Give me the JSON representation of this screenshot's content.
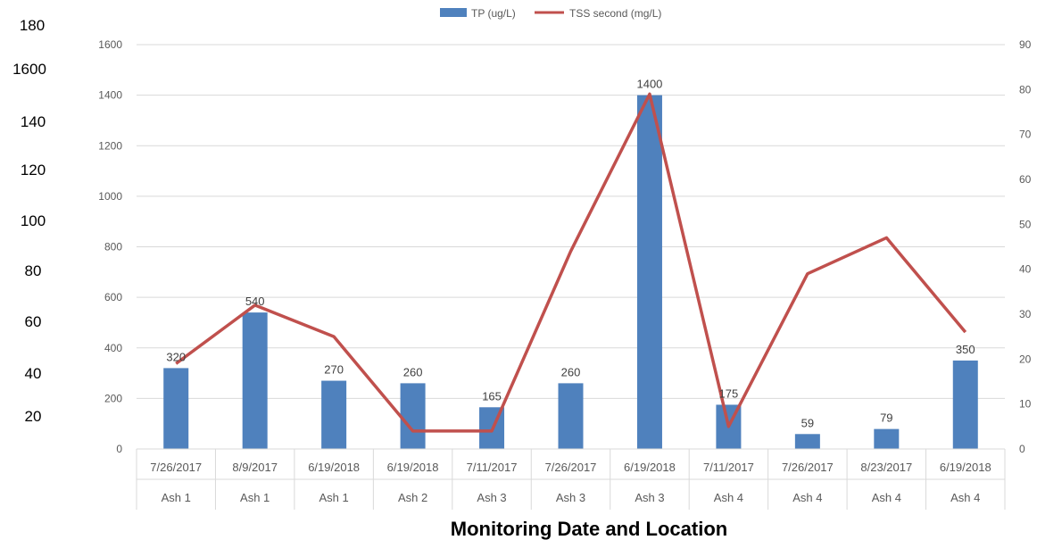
{
  "chart_data": {
    "type": "bar",
    "xlabel": "Monitoring Date and Location",
    "categories": [
      {
        "date": "7/26/2017",
        "location": "Ash 1"
      },
      {
        "date": "8/9/2017",
        "location": "Ash 1"
      },
      {
        "date": "6/19/2018",
        "location": "Ash 1"
      },
      {
        "date": "6/19/2018",
        "location": "Ash 2"
      },
      {
        "date": "7/11/2017",
        "location": "Ash 3"
      },
      {
        "date": "7/26/2017",
        "location": "Ash 3"
      },
      {
        "date": "6/19/2018",
        "location": "Ash 3"
      },
      {
        "date": "7/11/2017",
        "location": "Ash 4"
      },
      {
        "date": "7/26/2017",
        "location": "Ash 4"
      },
      {
        "date": "8/23/2017",
        "location": "Ash 4"
      },
      {
        "date": "6/19/2018",
        "location": "Ash 4"
      }
    ],
    "series": [
      {
        "name": "TP (ug/L)",
        "type": "bar",
        "axis": "left",
        "color": "#4f81bd",
        "values": [
          320,
          540,
          270,
          260,
          165,
          260,
          1400,
          175,
          59,
          79,
          350
        ],
        "data_labels": [
          "320",
          "540",
          "270",
          "260",
          "165",
          "260",
          "1400",
          "175",
          "59",
          "79",
          "350"
        ]
      },
      {
        "name": "TSS second (mg/L)",
        "type": "line",
        "axis": "right",
        "color": "#c0504d",
        "values": [
          19,
          32,
          25,
          4,
          4,
          44,
          79,
          5,
          39,
          47,
          26
        ]
      }
    ],
    "y_left": {
      "range": [
        0,
        1600
      ],
      "ticks": [
        "0",
        "200",
        "400",
        "600",
        "800",
        "1000",
        "1200",
        "1400",
        "1600"
      ]
    },
    "y_right": {
      "range": [
        0,
        90
      ],
      "ticks": [
        "0",
        "10",
        "20",
        "30",
        "40",
        "50",
        "60",
        "70",
        "80",
        "90"
      ]
    },
    "outer_left_ticks": [
      "180",
      "1600",
      "140",
      "120",
      "100",
      "80",
      "60",
      "40",
      "20"
    ],
    "legend_position": "top-center",
    "grid": true
  }
}
